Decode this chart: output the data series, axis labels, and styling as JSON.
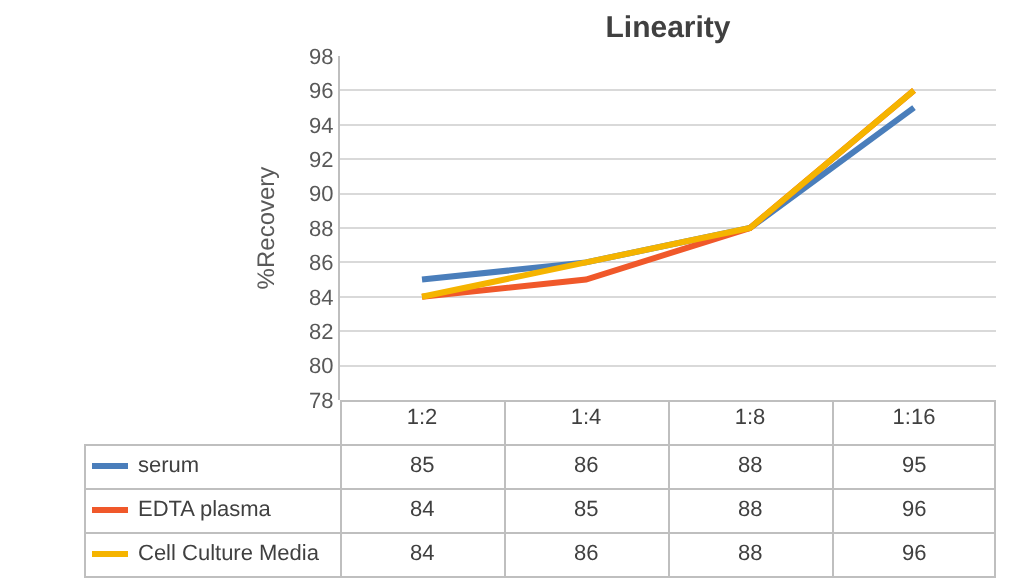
{
  "chart_data": {
    "type": "line",
    "title": "Linearity",
    "ylabel": "%Recovery",
    "categories": [
      "1:2",
      "1:4",
      "1:8",
      "1:16"
    ],
    "series": [
      {
        "name": "serum",
        "color": "#4a7ebb",
        "values": [
          85,
          86,
          88,
          95
        ]
      },
      {
        "name": "EDTA plasma",
        "color": "#f0582a",
        "values": [
          84,
          85,
          88,
          96
        ]
      },
      {
        "name": "Cell Culture Media",
        "color": "#f5b400",
        "values": [
          84,
          86,
          88,
          96
        ]
      }
    ],
    "ylim": [
      78,
      98
    ],
    "yticks": [
      78,
      80,
      82,
      84,
      86,
      88,
      90,
      92,
      94,
      96,
      98
    ],
    "grid": "y",
    "data_labels": true,
    "legend": "bottom",
    "line_style": "solid",
    "marker": "none"
  }
}
